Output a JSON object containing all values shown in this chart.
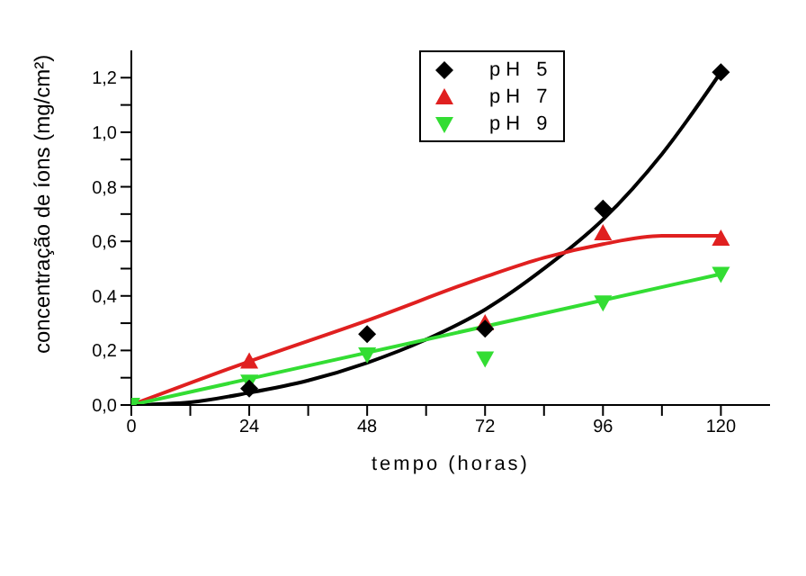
{
  "chart_data": {
    "type": "scatter",
    "xlabel": "tempo (horas)",
    "ylabel": "concentração de íons (mg/cm²)",
    "x": [
      0,
      24,
      48,
      72,
      96,
      120
    ],
    "series": [
      {
        "name": "pH 5",
        "color": "#000000",
        "marker": "diamond",
        "values": [
          null,
          0.06,
          0.26,
          0.28,
          0.72,
          1.22
        ]
      },
      {
        "name": "pH 7",
        "color": "#e02020",
        "marker": "triangle",
        "values": [
          null,
          0.16,
          null,
          0.3,
          0.63,
          0.61
        ]
      },
      {
        "name": "pH 9",
        "color": "#33dd33",
        "marker": "triangle-down",
        "values": [
          0,
          0.085,
          0.185,
          0.17,
          0.375,
          0.48
        ]
      },
      {
        "type": "line",
        "color": "#000000",
        "x": [
          0,
          12,
          24,
          36,
          48,
          60,
          72,
          84,
          96,
          108,
          120
        ],
        "values": [
          0,
          0.01,
          0.045,
          0.09,
          0.155,
          0.24,
          0.35,
          0.5,
          0.68,
          0.92,
          1.22
        ]
      },
      {
        "type": "line",
        "color": "#e02020",
        "x": [
          0,
          24,
          48,
          72,
          84,
          96,
          108,
          120
        ],
        "values": [
          0,
          0.16,
          0.31,
          0.47,
          0.54,
          0.59,
          0.62,
          0.62
        ]
      },
      {
        "type": "line",
        "color": "#33dd33",
        "x": [
          0,
          120
        ],
        "values": [
          0,
          0.48
        ]
      }
    ],
    "xlim": [
      0,
      130
    ],
    "xticks": [
      0,
      {
        "value": 12,
        "label": null
      },
      24,
      {
        "value": 36,
        "label": null
      },
      48,
      {
        "value": 60,
        "label": null
      },
      72,
      {
        "value": 84,
        "label": null
      },
      96,
      {
        "value": 108,
        "label": null
      },
      120
    ],
    "ylim": [
      0,
      1.3
    ],
    "yticks": [
      {
        "value": 0,
        "label": "0,0"
      },
      {
        "value": 0.1,
        "label": null
      },
      {
        "value": 0.2,
        "label": "0,2"
      },
      {
        "value": 0.3,
        "label": null
      },
      {
        "value": 0.4,
        "label": "0,4"
      },
      {
        "value": 0.5,
        "label": null
      },
      {
        "value": 0.6,
        "label": "0,6"
      },
      {
        "value": 0.7,
        "label": null
      },
      {
        "value": 0.8,
        "label": "0,8"
      },
      {
        "value": 0.9,
        "label": null
      },
      {
        "value": 1.0,
        "label": "1,0"
      },
      {
        "value": 1.1,
        "label": null
      },
      {
        "value": 1.2,
        "label": "1,2"
      }
    ],
    "grid": false,
    "legend": "top",
    "line_style": "solid"
  }
}
